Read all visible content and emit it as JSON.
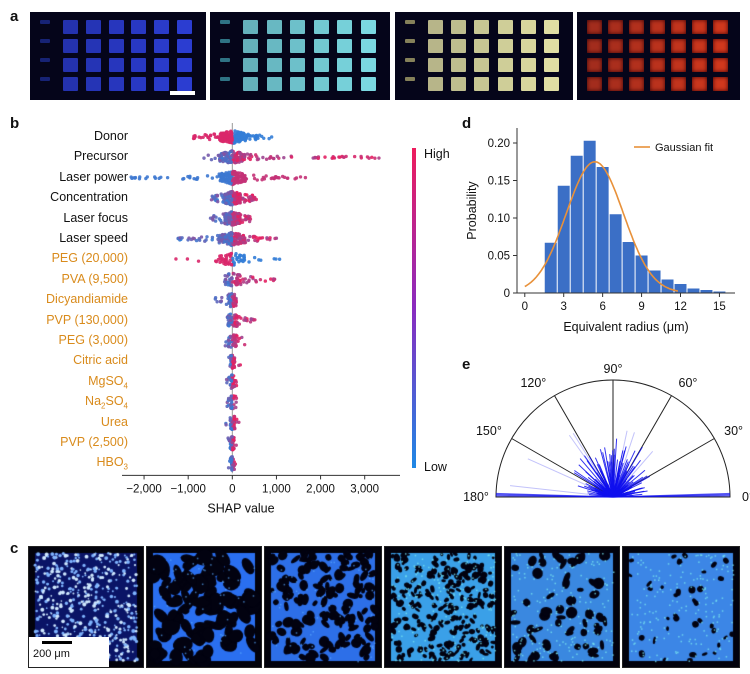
{
  "panels": {
    "a": "a",
    "b": "b",
    "c": "c",
    "d": "d",
    "e": "e"
  },
  "panel_a": {
    "tiles": [
      {
        "name": "blue-emission",
        "cell_color": "#2d3fd8",
        "dim_color": "#1c2a8c"
      },
      {
        "name": "cyan-emission",
        "cell_color": "#7fe0e8",
        "dim_color": "#3a8fa0"
      },
      {
        "name": "yellow-emission",
        "cell_color": "#e8e6a8",
        "dim_color": "#a5a06a"
      },
      {
        "name": "red-emission",
        "cell_color": "#d83a1e",
        "dim_color": "#8a2412"
      }
    ]
  },
  "chart_data": [
    {
      "type": "scatter",
      "subtype": "shap-beeswarm",
      "xlabel": "SHAP value",
      "xticks": [
        "−2,000",
        "−1,000",
        "0",
        "1,000",
        "2,000",
        "3,000"
      ],
      "xtick_values": [
        -2000,
        -1000,
        0,
        1000,
        2000,
        3000
      ],
      "xlim": [
        -2500,
        3800
      ],
      "features": [
        {
          "label": "Donor",
          "group": "process",
          "spread_low": -900,
          "spread_high": 900
        },
        {
          "label": "Precursor",
          "group": "process",
          "spread_low": -800,
          "spread_high": 3400
        },
        {
          "label": "Laser power",
          "group": "process",
          "spread_low": -2300,
          "spread_high": 1700
        },
        {
          "label": "Concentration",
          "group": "process",
          "spread_low": -500,
          "spread_high": 550
        },
        {
          "label": "Laser focus",
          "group": "process",
          "spread_low": -500,
          "spread_high": 500
        },
        {
          "label": "Laser speed",
          "group": "process",
          "spread_low": -1300,
          "spread_high": 1000
        },
        {
          "label": "PEG (20,000)",
          "group": "additive",
          "spread_low": -1500,
          "spread_high": 1100
        },
        {
          "label": "PVA (9,500)",
          "group": "additive",
          "spread_low": -100,
          "spread_high": 1000
        },
        {
          "label": "Dicyandiamide",
          "group": "additive",
          "spread_low": -400,
          "spread_high": 100
        },
        {
          "label": "PVP (130,000)",
          "group": "additive",
          "spread_low": -100,
          "spread_high": 550
        },
        {
          "label": "PEG (3,000)",
          "group": "additive",
          "spread_low": -300,
          "spread_high": 300
        },
        {
          "label": "Citric acid",
          "group": "additive",
          "spread_low": -100,
          "spread_high": 200
        },
        {
          "label": "MgSO4",
          "group": "additive",
          "spread_low": -150,
          "spread_high": 150
        },
        {
          "label": "Na2SO4",
          "group": "additive",
          "spread_low": -150,
          "spread_high": 100
        },
        {
          "label": "Urea",
          "group": "additive",
          "spread_low": -150,
          "spread_high": 150
        },
        {
          "label": "PVP (2,500)",
          "group": "additive",
          "spread_low": -100,
          "spread_high": 150
        },
        {
          "label": "HBO3",
          "group": "additive",
          "spread_low": -100,
          "spread_high": 100
        }
      ],
      "colorbar": {
        "high_label": "High",
        "low_label": "Low",
        "high_color": "#ee1c5c",
        "low_color": "#1e88e5"
      }
    },
    {
      "type": "bar",
      "subtype": "histogram",
      "xlabel": "Equivalent radius (μm)",
      "ylabel": "Probability",
      "xticks": [
        "0",
        "3",
        "6",
        "9",
        "12",
        "15"
      ],
      "xtick_values": [
        0,
        3,
        6,
        9,
        12,
        15
      ],
      "yticks": [
        "0",
        "0.05",
        "0.10",
        "0.15",
        "0.20"
      ],
      "ytick_values": [
        0,
        0.05,
        0.1,
        0.15,
        0.2
      ],
      "xlim": [
        -0.6,
        16.2
      ],
      "ylim": [
        0,
        0.22
      ],
      "bin_width": 1,
      "bin_starts": [
        1.5,
        2.5,
        3.5,
        4.5,
        5.5,
        6.5,
        7.5,
        8.5,
        9.5,
        10.5,
        11.5,
        12.5,
        13.5,
        14.5
      ],
      "values": [
        0.067,
        0.143,
        0.183,
        0.203,
        0.168,
        0.105,
        0.068,
        0.05,
        0.03,
        0.018,
        0.012,
        0.006,
        0.004,
        0.002
      ],
      "fit": {
        "label": "Gaussian fit",
        "mean": 5.4,
        "sigma": 2.2,
        "peak": 0.175,
        "color": "#e8913a"
      },
      "bar_color": "#3b6fc6"
    },
    {
      "type": "polar",
      "subtype": "half-rose",
      "angle_labels": [
        "0°",
        "30°",
        "60°",
        "90°",
        "120°",
        "150°",
        "180°"
      ],
      "angle_values": [
        0,
        30,
        60,
        90,
        120,
        150,
        180
      ],
      "color": "#1010ee"
    }
  ],
  "panel_c": {
    "scale_label": "200 μm",
    "images": [
      {
        "name": "pattern-1"
      },
      {
        "name": "pattern-2"
      },
      {
        "name": "pattern-3"
      },
      {
        "name": "pattern-4"
      },
      {
        "name": "pattern-5"
      },
      {
        "name": "pattern-6"
      }
    ]
  }
}
